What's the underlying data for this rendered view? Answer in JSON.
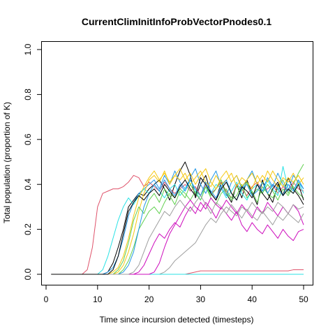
{
  "chart_data": {
    "type": "line",
    "title": "CurrentClimInitInfoProbVectorPnodes0.1",
    "xlabel": "Time since incursion detected (timesteps)",
    "ylabel": "Total population (proportion of K)",
    "xlim": [
      0,
      51
    ],
    "ylim": [
      0,
      1
    ],
    "xticks": [
      0,
      10,
      20,
      30,
      40,
      50
    ],
    "yticks": [
      0.0,
      0.2,
      0.4,
      0.6,
      0.8,
      1.0
    ],
    "ytick_labels": [
      "0.0",
      "0.2",
      "0.4",
      "0.6",
      "0.8",
      "1.0"
    ],
    "grid": false,
    "x_start": 1,
    "series": [
      {
        "color": "#000000",
        "values": [
          0,
          0,
          0,
          0,
          0,
          0,
          0,
          0,
          0,
          0,
          0,
          0.01,
          0.05,
          0.12,
          0.2,
          0.3,
          0.33,
          0.36,
          0.35,
          0.38,
          0.4,
          0.42,
          0.38,
          0.33,
          0.4,
          0.46,
          0.5,
          0.44,
          0.34,
          0.4,
          0.44,
          0.36,
          0.33,
          0.41,
          0.36,
          0.32,
          0.4,
          0.34,
          0.42,
          0.36,
          0.31,
          0.42,
          0.36,
          0.32,
          0.4,
          0.35,
          0.43,
          0.38,
          0.35,
          0.31
        ]
      },
      {
        "color": "#DF536B",
        "values": [
          0,
          0,
          0,
          0,
          0,
          0,
          0,
          0.02,
          0.12,
          0.3,
          0.36,
          0.37,
          0.38,
          0.38,
          0.39,
          0.41,
          0.44,
          0.43,
          0.39,
          0.41,
          0.39,
          0.37,
          0.41,
          0.38,
          0.36,
          0.38,
          0.4,
          0.37,
          0.39,
          0.35,
          0.4,
          0.36,
          0.38,
          0.41,
          0.37,
          0.34,
          0.4,
          0.38,
          0.35,
          0.39,
          0.41,
          0.37,
          0.38,
          0.4,
          0.36,
          0.39,
          0.37,
          0.41,
          0.38,
          0.37
        ]
      },
      {
        "color": "#61D04F",
        "values": [
          0,
          0,
          0,
          0,
          0,
          0,
          0,
          0,
          0,
          0,
          0,
          0,
          0,
          0,
          0.02,
          0.06,
          0.12,
          0.2,
          0.24,
          0.28,
          0.3,
          0.27,
          0.32,
          0.36,
          0.34,
          0.38,
          0.36,
          0.33,
          0.37,
          0.35,
          0.39,
          0.34,
          0.31,
          0.36,
          0.38,
          0.33,
          0.35,
          0.4,
          0.34,
          0.37,
          0.32,
          0.39,
          0.36,
          0.34,
          0.38,
          0.42,
          0.36,
          0.4,
          0.45,
          0.49
        ]
      },
      {
        "color": "#2297E6",
        "values": [
          0,
          0,
          0,
          0,
          0,
          0,
          0,
          0,
          0,
          0,
          0,
          0.01,
          0.03,
          0.08,
          0.16,
          0.26,
          0.32,
          0.36,
          0.38,
          0.4,
          0.42,
          0.38,
          0.44,
          0.4,
          0.46,
          0.41,
          0.38,
          0.43,
          0.47,
          0.4,
          0.36,
          0.42,
          0.46,
          0.39,
          0.35,
          0.41,
          0.44,
          0.38,
          0.42,
          0.46,
          0.4,
          0.37,
          0.43,
          0.39,
          0.45,
          0.4,
          0.37,
          0.44,
          0.41,
          0.38
        ]
      },
      {
        "color": "#28E2E5",
        "values": [
          0,
          0,
          0,
          0,
          0,
          0,
          0,
          0,
          0,
          0,
          0.02,
          0.08,
          0.16,
          0.24,
          0.3,
          0.34,
          0.31,
          0.35,
          0.38,
          0.36,
          0.4,
          0.37,
          0.34,
          0.38,
          0.4,
          0.35,
          0.38,
          0.42,
          0.37,
          0.33,
          0.39,
          0.36,
          0.4,
          0.38,
          0.34,
          0.37,
          0.41,
          0.36,
          0.33,
          0.38,
          0.4,
          0.36,
          0.42,
          0.38,
          0.35,
          0.48,
          0.38,
          0.36,
          0.41,
          0.36
        ]
      },
      {
        "color": "#CD0BBC",
        "values": [
          0,
          0,
          0,
          0,
          0,
          0,
          0,
          0,
          0,
          0,
          0,
          0,
          0,
          0,
          0,
          0,
          0,
          0.01,
          0.04,
          0.09,
          0.14,
          0.18,
          0.16,
          0.2,
          0.23,
          0.21,
          0.26,
          0.3,
          0.27,
          0.32,
          0.29,
          0.34,
          0.31,
          0.29,
          0.33,
          0.3,
          0.27,
          0.31,
          0.28,
          0.25,
          0.3,
          0.27,
          0.32,
          0.29,
          0.26,
          0.3,
          0.27,
          0.31,
          0.28,
          0.22
        ]
      },
      {
        "color": "#F5C710",
        "values": [
          0,
          0,
          0,
          0,
          0,
          0,
          0,
          0,
          0,
          0,
          0,
          0,
          0,
          0.01,
          0.04,
          0.1,
          0.18,
          0.28,
          0.36,
          0.42,
          0.44,
          0.41,
          0.46,
          0.4,
          0.44,
          0.42,
          0.45,
          0.4,
          0.43,
          0.46,
          0.41,
          0.39,
          0.44,
          0.4,
          0.42,
          0.45,
          0.39,
          0.43,
          0.41,
          0.38,
          0.44,
          0.4,
          0.46,
          0.42,
          0.39,
          0.43,
          0.41,
          0.45,
          0.4,
          0.43
        ]
      },
      {
        "color": "#9E9E9E",
        "values": [
          0,
          0,
          0,
          0,
          0,
          0,
          0,
          0,
          0,
          0,
          0,
          0,
          0,
          0,
          0,
          0,
          0,
          0,
          0,
          0,
          0,
          0,
          0.01,
          0.03,
          0.06,
          0.08,
          0.1,
          0.12,
          0.14,
          0.18,
          0.22,
          0.25,
          0.23,
          0.27,
          0.3,
          0.28,
          0.26,
          0.3,
          0.28,
          0.32,
          0.29,
          0.27,
          0.3,
          0.28,
          0.32,
          0.3,
          0.27,
          0.31,
          0.29,
          0.3
        ]
      },
      {
        "color": "#DF536B",
        "values": [
          0,
          0,
          0,
          0,
          0,
          0,
          0,
          0,
          0,
          0,
          0,
          0,
          0,
          0,
          0,
          0,
          0,
          0,
          0,
          0,
          0,
          0,
          0,
          0,
          0,
          0,
          0,
          0.005,
          0.01,
          0.015,
          0.015,
          0.015,
          0.015,
          0.015,
          0.015,
          0.015,
          0.015,
          0.015,
          0.015,
          0.015,
          0.015,
          0.015,
          0.015,
          0.015,
          0.015,
          0.015,
          0.015,
          0.02,
          0.02,
          0.02
        ]
      },
      {
        "color": "#61D04F",
        "values": [
          0,
          0,
          0,
          0,
          0,
          0,
          0,
          0,
          0,
          0,
          0,
          0,
          0,
          0.02,
          0.06,
          0.14,
          0.24,
          0.3,
          0.27,
          0.33,
          0.36,
          0.32,
          0.38,
          0.35,
          0.31,
          0.37,
          0.34,
          0.4,
          0.36,
          0.33,
          0.39,
          0.35,
          0.38,
          0.42,
          0.36,
          0.34,
          0.39,
          0.37,
          0.41,
          0.35,
          0.38,
          0.36,
          0.4,
          0.37,
          0.33,
          0.38,
          0.35,
          0.39,
          0.36,
          0.34
        ]
      },
      {
        "color": "#2297E6",
        "values": [
          0,
          0,
          0,
          0,
          0,
          0,
          0,
          0,
          0,
          0,
          0,
          0,
          0,
          0,
          0.01,
          0.04,
          0.1,
          0.2,
          0.3,
          0.36,
          0.4,
          0.37,
          0.42,
          0.38,
          0.35,
          0.4,
          0.37,
          0.42,
          0.38,
          0.35,
          0.41,
          0.37,
          0.34,
          0.39,
          0.42,
          0.36,
          0.33,
          0.38,
          0.4,
          0.35,
          0.37,
          0.41,
          0.36,
          0.4,
          0.38,
          0.35,
          0.4,
          0.37,
          0.42,
          0.38
        ]
      },
      {
        "color": "#28E2E5",
        "values": [
          0,
          0,
          0,
          0,
          0,
          0,
          0,
          0,
          0,
          0,
          0,
          0,
          0,
          0,
          0,
          0,
          0,
          0,
          0,
          0,
          0,
          0,
          0,
          0,
          0,
          0,
          0,
          0,
          0,
          0,
          0,
          0,
          0,
          0,
          0,
          0,
          0,
          0,
          0,
          0,
          0,
          0,
          0,
          0,
          0,
          0,
          0,
          0,
          0,
          0
        ]
      },
      {
        "color": "#CD0BBC",
        "values": [
          0,
          0,
          0,
          0,
          0,
          0,
          0,
          0,
          0,
          0,
          0,
          0,
          0,
          0,
          0,
          0,
          0,
          0,
          0,
          0,
          0.01,
          0.05,
          0.12,
          0.18,
          0.22,
          0.26,
          0.3,
          0.33,
          0.3,
          0.28,
          0.32,
          0.29,
          0.25,
          0.3,
          0.27,
          0.24,
          0.28,
          0.22,
          0.19,
          0.23,
          0.2,
          0.18,
          0.22,
          0.19,
          0.16,
          0.2,
          0.17,
          0.15,
          0.19,
          0.2
        ]
      },
      {
        "color": "#F5C710",
        "values": [
          0,
          0,
          0,
          0,
          0,
          0,
          0,
          0,
          0,
          0,
          0,
          0,
          0.01,
          0.03,
          0.08,
          0.16,
          0.26,
          0.34,
          0.39,
          0.43,
          0.46,
          0.42,
          0.45,
          0.41,
          0.44,
          0.47,
          0.42,
          0.45,
          0.4,
          0.44,
          0.47,
          0.41,
          0.38,
          0.43,
          0.46,
          0.41,
          0.44,
          0.39,
          0.42,
          0.45,
          0.4,
          0.44,
          0.41,
          0.46,
          0.42,
          0.39,
          0.43,
          0.41,
          0.44,
          0.4
        ]
      },
      {
        "color": "#9E9E9E",
        "values": [
          0,
          0,
          0,
          0,
          0,
          0,
          0,
          0,
          0,
          0,
          0,
          0,
          0,
          0,
          0,
          0,
          0.01,
          0.04,
          0.1,
          0.16,
          0.2,
          0.24,
          0.28,
          0.26,
          0.3,
          0.33,
          0.3,
          0.28,
          0.32,
          0.35,
          0.31,
          0.27,
          0.32,
          0.3,
          0.27,
          0.31,
          0.28,
          0.25,
          0.29,
          0.26,
          0.24,
          0.28,
          0.25,
          0.22,
          0.26,
          0.24,
          0.27,
          0.25,
          0.23,
          0.27
        ]
      },
      {
        "color": "#000000",
        "values": [
          0,
          0,
          0,
          0,
          0,
          0,
          0,
          0,
          0,
          0,
          0,
          0,
          0.02,
          0.08,
          0.18,
          0.28,
          0.32,
          0.35,
          0.33,
          0.36,
          0.38,
          0.35,
          0.4,
          0.37,
          0.34,
          0.39,
          0.42,
          0.38,
          0.35,
          0.43,
          0.4,
          0.36,
          0.33,
          0.38,
          0.41,
          0.36,
          0.33,
          0.39,
          0.37,
          0.34,
          0.4,
          0.36,
          0.33,
          0.38,
          0.41,
          0.35,
          0.38,
          0.36,
          0.4,
          0.33
        ]
      }
    ]
  }
}
